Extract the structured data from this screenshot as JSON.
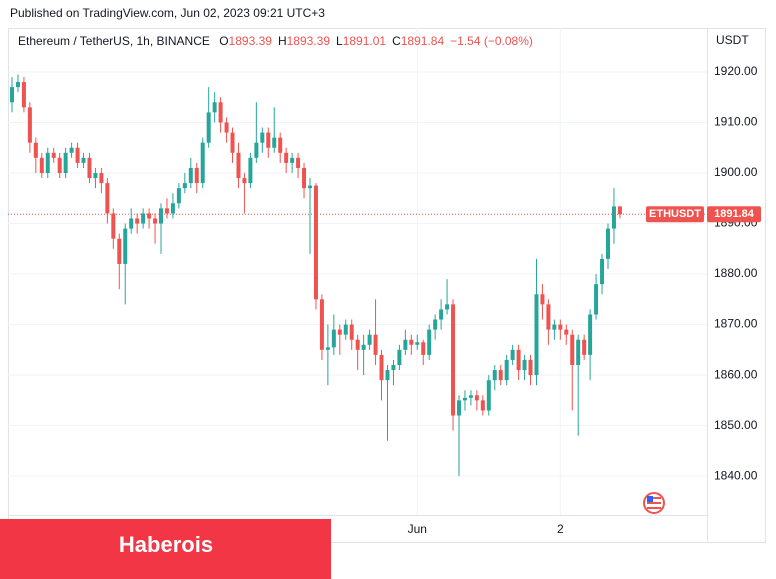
{
  "published": "Published on TradingView.com, Jun 02, 2023 09:21 UTC+3",
  "banner": "Haberois",
  "chart_data": {
    "type": "candlestick",
    "title": "Ethereum / TetherUS, 1h, BINANCE",
    "legend": [
      {
        "key": "O",
        "value": "1893.39"
      },
      {
        "key": "H",
        "value": "1893.39"
      },
      {
        "key": "L",
        "value": "1891.01"
      },
      {
        "key": "C",
        "value": "1891.84"
      }
    ],
    "change": "−1.54 (−0.08%)",
    "currency": "USDT",
    "symbol": "ETHUSDT",
    "up_color": "#26a69a",
    "down_color": "#ef5350",
    "grid": true,
    "categories": [
      null,
      null,
      null,
      null,
      null,
      null,
      null,
      null,
      null,
      null,
      null,
      null,
      null,
      null,
      null,
      null,
      null,
      null,
      null,
      null,
      null,
      null,
      null,
      null,
      null,
      null,
      null,
      null,
      null,
      null,
      null,
      null,
      null,
      null,
      null,
      null,
      null,
      null,
      null,
      null,
      null,
      null,
      null,
      null,
      null,
      null,
      null,
      null,
      null,
      null,
      null,
      null,
      null,
      null,
      null,
      null,
      null,
      null,
      null,
      null,
      null,
      null,
      null,
      null,
      null,
      null,
      null,
      null,
      "Jun",
      null,
      null,
      null,
      null,
      null,
      null,
      null,
      null,
      null,
      null,
      null,
      null,
      null,
      null,
      null,
      null,
      null,
      null,
      null,
      null,
      null,
      null,
      null,
      "2",
      null,
      null,
      null,
      null,
      null,
      null,
      null,
      null,
      null,
      null
    ],
    "open": [
      1914,
      1917,
      1918,
      1913,
      1906,
      1903,
      1900,
      1904,
      1903,
      1900,
      1904,
      1905,
      1902,
      1903,
      1899,
      1900,
      1898,
      1892,
      1887,
      1882,
      1889,
      1891,
      1890,
      1892,
      1891,
      1890,
      1893,
      1892,
      1894,
      1897,
      1898,
      1901,
      1898,
      1906,
      1912,
      1914,
      1910,
      1908,
      1904,
      1899,
      1898,
      1903,
      1906,
      1908,
      1905,
      1907,
      1904,
      1902,
      1903,
      1901,
      1897,
      1897.5,
      1875,
      1865,
      1865.5,
      1869,
      1868,
      1870,
      1867,
      1865,
      1866,
      1868,
      1864,
      1859,
      1861,
      1862,
      1865,
      1867,
      1866,
      1866.5,
      1864,
      1869,
      1871,
      1873,
      1874,
      1852,
      1855,
      1855.5,
      1856,
      1855,
      1853,
      1859,
      1861,
      1859,
      1863,
      1865,
      1861,
      1863,
      1860,
      1876,
      1874,
      1869,
      1870,
      1869,
      1868,
      1862,
      1867,
      1864,
      1872,
      1878,
      1883,
      1889,
      1893.39
    ],
    "high": [
      1919,
      1919.5,
      1919,
      1914,
      1907,
      1904,
      1905,
      1905,
      1904,
      1905,
      1906,
      1906,
      1904,
      1904,
      1901,
      1901,
      1899,
      1893,
      1888,
      1890,
      1893,
      1892,
      1893,
      1893,
      1892,
      1894,
      1895,
      1896,
      1898,
      1900,
      1903,
      1902,
      1907,
      1917,
      1916,
      1915,
      1911,
      1909,
      1906,
      1900,
      1904,
      1914,
      1909,
      1909,
      1913,
      1908,
      1905,
      1904,
      1904,
      1902,
      1899,
      1898,
      1876,
      1870,
      1872,
      1870,
      1871,
      1871,
      1868,
      1868,
      1869,
      1875,
      1865,
      1862,
      1863,
      1866,
      1869,
      1868,
      1868,
      1867,
      1870,
      1872,
      1875,
      1879,
      1875,
      1856,
      1857,
      1857,
      1857,
      1856,
      1860,
      1862,
      1862,
      1864,
      1866,
      1866,
      1864,
      1864,
      1883,
      1878,
      1875,
      1871,
      1871,
      1870,
      1869,
      1868,
      1868,
      1873,
      1880,
      1884,
      1890,
      1897,
      1893.39
    ],
    "low": [
      1912,
      1916,
      1912,
      1904,
      1900,
      1899,
      1899,
      1902,
      1899,
      1899,
      1903,
      1901,
      1901,
      1898,
      1897,
      1896,
      1890,
      1885,
      1877,
      1874,
      1888,
      1888,
      1889,
      1889,
      1886,
      1884,
      1891,
      1891,
      1893,
      1896,
      1897,
      1896,
      1897,
      1905,
      1910,
      1908,
      1906,
      1902,
      1897,
      1892,
      1897,
      1902,
      1904,
      1903,
      1904,
      1902,
      1900,
      1900,
      1899,
      1895,
      1884,
      1873,
      1863,
      1858,
      1864,
      1864,
      1867,
      1865,
      1861,
      1860,
      1865,
      1862,
      1855,
      1847,
      1858,
      1861,
      1864,
      1864,
      1865,
      1862,
      1863,
      1867,
      1869,
      1872,
      1849,
      1840,
      1853,
      1854,
      1853,
      1852,
      1852,
      1857,
      1858,
      1858,
      1862,
      1859,
      1859,
      1858,
      1858,
      1871,
      1866,
      1867,
      1867,
      1866,
      1853,
      1848,
      1863,
      1859,
      1871,
      1876,
      1881,
      1886,
      1891.01
    ],
    "close": [
      1917,
      1918,
      1913,
      1906,
      1903,
      1900,
      1904,
      1903,
      1900,
      1904,
      1905,
      1902,
      1903,
      1899,
      1900,
      1898,
      1892,
      1887,
      1882,
      1889,
      1891,
      1890,
      1892,
      1891,
      1890,
      1893,
      1892,
      1894,
      1897,
      1898,
      1901,
      1898,
      1906,
      1912,
      1914,
      1910,
      1908,
      1904,
      1899,
      1898,
      1903,
      1906,
      1908,
      1905,
      1907,
      1904,
      1902,
      1903,
      1901,
      1897,
      1897.5,
      1875,
      1865,
      1865.5,
      1869,
      1868,
      1870,
      1867,
      1865,
      1866,
      1868,
      1864,
      1859,
      1861,
      1862,
      1865,
      1867,
      1866,
      1866.5,
      1864,
      1869,
      1871,
      1873,
      1874,
      1852,
      1855,
      1855.5,
      1856,
      1855,
      1853,
      1859,
      1861,
      1859,
      1863,
      1865,
      1861,
      1863,
      1860,
      1876,
      1874,
      1869,
      1870,
      1869,
      1868,
      1862,
      1867,
      1864,
      1872,
      1878,
      1883,
      1889,
      1893.39,
      1891.84
    ],
    "ylim": [
      1833.3,
      1928.7
    ],
    "yticks": [
      {
        "value": 1840,
        "label": "1840.00"
      },
      {
        "value": 1850,
        "label": "1850.00"
      },
      {
        "value": 1860,
        "label": "1860.00"
      },
      {
        "value": 1870,
        "label": "1870.00"
      },
      {
        "value": 1880,
        "label": "1880.00"
      },
      {
        "value": 1890,
        "label": "1890.00"
      },
      {
        "value": 1900,
        "label": "1900.00"
      },
      {
        "value": 1910,
        "label": "1910.00"
      },
      {
        "value": 1920,
        "label": "1920.00"
      }
    ]
  }
}
